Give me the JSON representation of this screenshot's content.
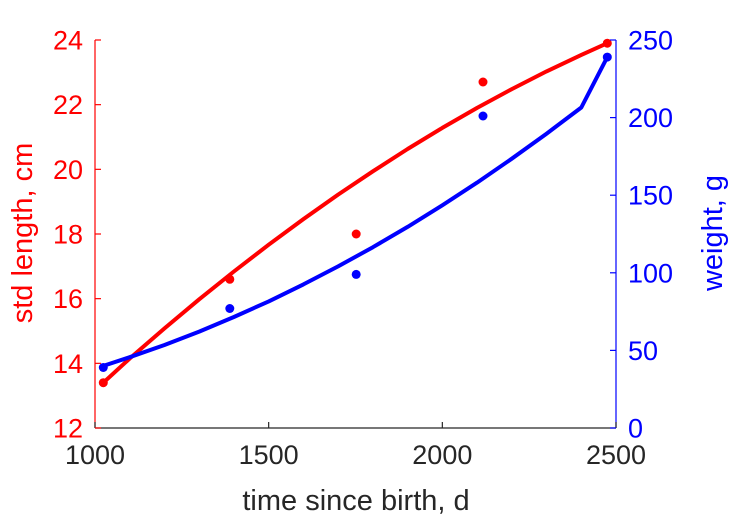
{
  "chart_data": {
    "type": "scatter",
    "x_axis": {
      "label": "time since birth, d",
      "range": [
        1000,
        2500
      ],
      "ticks": [
        1000,
        1500,
        2000,
        2500
      ],
      "tick_labels": [
        "1000",
        "1500",
        "2000",
        "2500"
      ]
    },
    "y_left": {
      "label": "std length, cm",
      "range": [
        12,
        24
      ],
      "ticks": [
        12,
        14,
        16,
        18,
        20,
        22,
        24
      ],
      "tick_labels": [
        "12",
        "14",
        "16",
        "18",
        "20",
        "22",
        "24"
      ],
      "color": "#ff0000"
    },
    "y_right": {
      "label": "weight, g",
      "range": [
        0,
        250
      ],
      "ticks": [
        0,
        50,
        100,
        150,
        200,
        250
      ],
      "tick_labels": [
        "0",
        "50",
        "100",
        "150",
        "200",
        "250"
      ],
      "color": "#0000ff"
    },
    "series": [
      {
        "axis": "left",
        "color": "#ff0000",
        "points": [
          [
            1024,
            13.4
          ],
          [
            1388,
            16.6
          ],
          [
            1752,
            18.0
          ],
          [
            2117,
            22.7
          ],
          [
            2475,
            23.9
          ]
        ],
        "fit": [
          [
            1024,
            13.4
          ],
          [
            1100,
            14.15
          ],
          [
            1200,
            15.08
          ],
          [
            1300,
            15.98
          ],
          [
            1400,
            16.84
          ],
          [
            1500,
            17.67
          ],
          [
            1600,
            18.46
          ],
          [
            1700,
            19.22
          ],
          [
            1800,
            19.94
          ],
          [
            1900,
            20.63
          ],
          [
            2000,
            21.28
          ],
          [
            2100,
            21.9
          ],
          [
            2200,
            22.48
          ],
          [
            2300,
            23.03
          ],
          [
            2400,
            23.54
          ],
          [
            2475,
            23.9
          ]
        ]
      },
      {
        "axis": "right",
        "color": "#0000ff",
        "points": [
          [
            1024,
            39
          ],
          [
            1388,
            77
          ],
          [
            1752,
            99
          ],
          [
            2117,
            201
          ],
          [
            2475,
            239
          ]
        ],
        "fit": [
          [
            1024,
            40
          ],
          [
            1100,
            45.6
          ],
          [
            1200,
            53.5
          ],
          [
            1300,
            62.1
          ],
          [
            1400,
            71.5
          ],
          [
            1500,
            81.6
          ],
          [
            1600,
            92.5
          ],
          [
            1700,
            104.1
          ],
          [
            1800,
            116.5
          ],
          [
            1900,
            129.6
          ],
          [
            2000,
            143.5
          ],
          [
            2100,
            158.1
          ],
          [
            2200,
            173.5
          ],
          [
            2300,
            189.6
          ],
          [
            2400,
            206.5
          ],
          [
            2475,
            239
          ]
        ]
      }
    ],
    "grid": false,
    "legend": "none"
  }
}
